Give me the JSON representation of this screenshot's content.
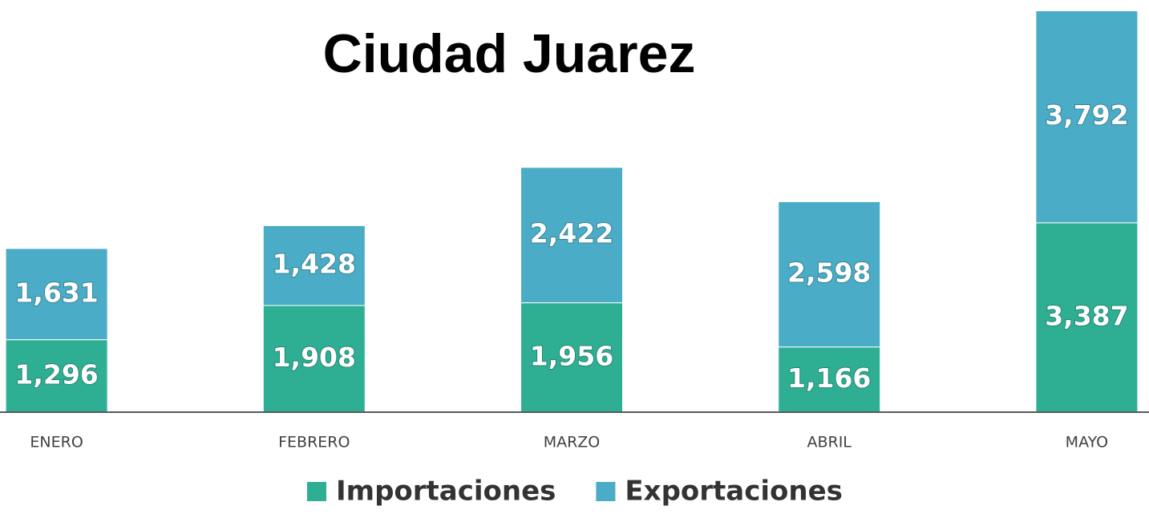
{
  "chart_data": {
    "type": "stacked_bar",
    "title": "Ciudad Juarez",
    "categories": [
      "ENERO",
      "FEBRERO",
      "MARZO",
      "ABRIL",
      "MAYO"
    ],
    "series": [
      {
        "name": "Importaciones",
        "color": "#2eaf94",
        "values": [
          1296,
          1908,
          1956,
          1166,
          3387
        ],
        "value_labels": [
          "1,296",
          "1,908",
          "1,956",
          "1,166",
          "3,387"
        ]
      },
      {
        "name": "Exportaciones",
        "color": "#4aacc6",
        "values": [
          1631,
          1428,
          2422,
          2598,
          3792
        ],
        "value_labels": [
          "1,631",
          "1,428",
          "2,422",
          "2,598",
          "3,792"
        ]
      }
    ],
    "ylim": [
      0,
      7200
    ],
    "legend": "bottom"
  }
}
